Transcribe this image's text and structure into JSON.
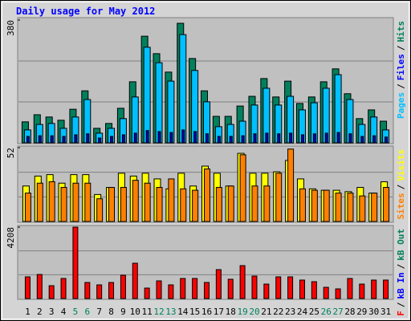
{
  "chart_data": [
    {
      "type": "bar",
      "title": "Daily usage for May 2012",
      "legend_separator": "/",
      "ylim": [
        0,
        380
      ],
      "yticks": [
        380
      ],
      "series": [
        {
          "name": "Pages",
          "color": "#00c0ff",
          "bar_color": "#0000c0",
          "values": [
            20,
            22,
            22,
            20,
            25,
            28,
            15,
            20,
            25,
            30,
            38,
            35,
            32,
            40,
            35,
            28,
            20,
            20,
            22,
            28,
            30,
            28,
            30,
            25,
            28,
            30,
            32,
            28,
            20,
            22,
            18
          ]
        },
        {
          "name": "Files",
          "color": "#0000ff",
          "bar_color": "#00c0ff",
          "values": [
            40,
            57,
            60,
            45,
            80,
            134,
            30,
            45,
            75,
            142,
            296,
            248,
            191,
            335,
            224,
            127,
            50,
            57,
            67,
            117,
            169,
            117,
            144,
            102,
            124,
            169,
            211,
            134,
            57,
            80,
            40
          ]
        },
        {
          "name": "Hits",
          "color": "#00805c",
          "bar_color": "#00805c",
          "values": [
            65,
            87,
            80,
            70,
            104,
            161,
            45,
            60,
            107,
            189,
            330,
            276,
            219,
            370,
            261,
            161,
            82,
            82,
            114,
            144,
            199,
            142,
            191,
            122,
            142,
            189,
            229,
            152,
            75,
            102,
            67
          ]
        }
      ]
    },
    {
      "type": "bar",
      "ylim": [
        0,
        52
      ],
      "yticks": [
        52
      ],
      "series": [
        {
          "name": "Sites",
          "color": "#ff8000",
          "bar_color": "#ff8000",
          "values": [
            20,
            27,
            28,
            24,
            27,
            27,
            16,
            24,
            24,
            29,
            27,
            24,
            30,
            23,
            22,
            37,
            24,
            25,
            47,
            25,
            25,
            34,
            51,
            23,
            22,
            22,
            20,
            20,
            18,
            20,
            24
          ]
        },
        {
          "name": "Visits",
          "color": "#ffff00",
          "bar_color": "#ffff00",
          "values": [
            25,
            32,
            33,
            27,
            33,
            33,
            19,
            24,
            34,
            32,
            34,
            30,
            23,
            34,
            25,
            39,
            34,
            25,
            48,
            34,
            34,
            35,
            43,
            30,
            23,
            22,
            22,
            21,
            24,
            20,
            28
          ]
        }
      ]
    },
    {
      "type": "bar",
      "ylim": [
        0,
        4208
      ],
      "yticks": [
        4208
      ],
      "series": [
        {
          "name": "kB F",
          "color": "#ff0000",
          "bar_color": "#ff0000",
          "values": [
            1277,
            1418,
            757,
            1182,
            4208,
            946,
            804,
            946,
            1371,
            2080,
            615,
            1040,
            804,
            1182,
            1182,
            946,
            1703,
            1135,
            1939,
            1324,
            851,
            1277,
            1277,
            1088,
            993,
            662,
            568,
            1182,
            851,
            1088,
            1088
          ]
        }
      ],
      "other_legend": [
        {
          "name": "kB In",
          "color": "#0000ff"
        },
        {
          "name": "kB Out",
          "color": "#00805c"
        }
      ],
      "categories": [
        "1",
        "2",
        "3",
        "4",
        "5",
        "6",
        "7",
        "8",
        "9",
        "10",
        "11",
        "12",
        "13",
        "14",
        "15",
        "16",
        "17",
        "18",
        "19",
        "20",
        "21",
        "22",
        "23",
        "24",
        "25",
        "26",
        "27",
        "28",
        "29",
        "30",
        "31"
      ],
      "category_colors": [
        "#000000",
        "#000000",
        "#000000",
        "#000000",
        "#00805c",
        "#00805c",
        "#000000",
        "#000000",
        "#000000",
        "#000000",
        "#000000",
        "#00805c",
        "#00805c",
        "#000000",
        "#000000",
        "#000000",
        "#000000",
        "#000000",
        "#00805c",
        "#00805c",
        "#000000",
        "#000000",
        "#000000",
        "#000000",
        "#000000",
        "#00805c",
        "#00805c",
        "#000000",
        "#000000",
        "#000000",
        "#000000"
      ]
    }
  ]
}
